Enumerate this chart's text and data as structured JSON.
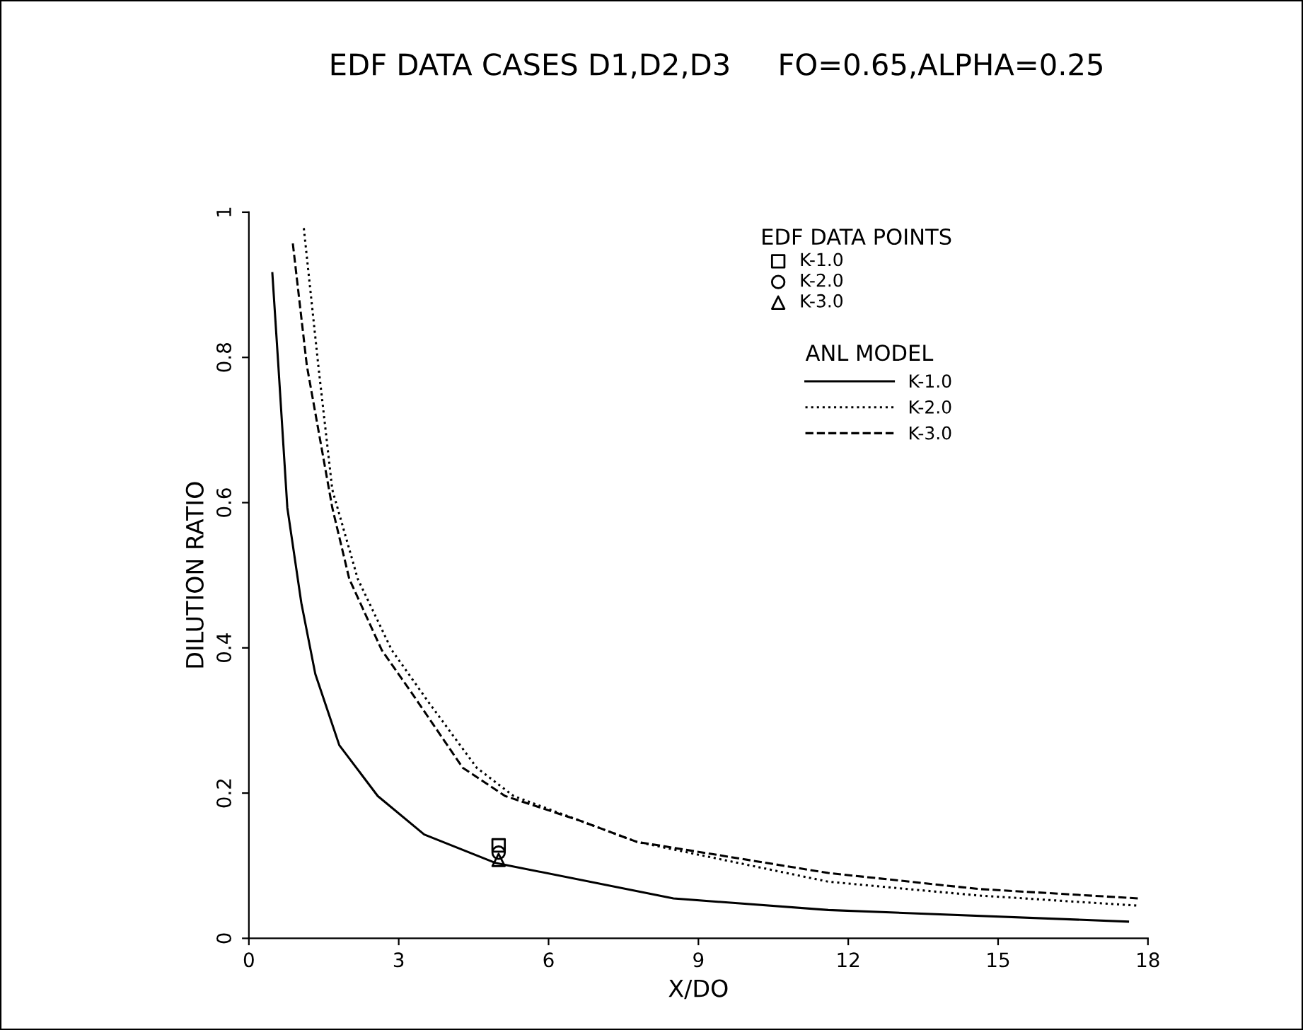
{
  "chart_data": {
    "type": "line",
    "title": "EDF DATA CASES D1,D2,D3     FO=0.65,ALPHA=0.25",
    "xlabel": "X/DO",
    "ylabel": "DILUTION RATIO",
    "legend_title": "EDF DATA POINTS",
    "annotations": [
      "ANL MODEL"
    ],
    "xlim": [
      0,
      18
    ],
    "xticks": [
      0,
      3,
      6,
      9,
      12,
      15,
      18
    ],
    "ylim": [
      0,
      1
    ],
    "yticks": [
      0,
      0.2,
      0.4,
      0.6,
      0.8,
      {
        "value": 1,
        "label": "1"
      }
    ],
    "grid": false,
    "legend": "top right",
    "series": [
      {
        "name": "K-1.0",
        "type": "scatter",
        "marker": "square",
        "color": "#000000",
        "x": [
          5
        ],
        "values": [
          0.128
        ]
      },
      {
        "name": "K-2.0",
        "type": "scatter",
        "marker": "circle",
        "color": "#000000",
        "x": [
          5
        ],
        "values": [
          0.118
        ]
      },
      {
        "name": "K-3.0",
        "type": "scatter",
        "marker": "triangle",
        "color": "#000000",
        "x": [
          5
        ],
        "values": [
          0.108
        ]
      },
      {
        "name": "K-1.0",
        "line_style": "solid",
        "color": "#000000",
        "x": [
          0.47,
          0.59,
          0.77,
          1.05,
          1.33,
          1.81,
          2.58,
          3.51,
          4.93,
          8.5,
          11.6,
          17.6
        ],
        "values": [
          0.916,
          0.789,
          0.593,
          0.462,
          0.364,
          0.266,
          0.196,
          0.143,
          0.104,
          0.055,
          0.039,
          0.023
        ]
      },
      {
        "name": "K-2.0",
        "line_style": "dotted",
        "color": "#000000",
        "x": [
          1.1,
          1.39,
          1.67,
          2.18,
          2.86,
          3.6,
          4.56,
          5.3,
          6.63,
          7.76,
          11.6,
          14.6,
          17.8
        ],
        "values": [
          0.978,
          0.789,
          0.618,
          0.495,
          0.397,
          0.325,
          0.235,
          0.196,
          0.162,
          0.133,
          0.078,
          0.059,
          0.045
        ]
      },
      {
        "name": "K-3.0",
        "line_style": "dashed",
        "color": "#000000",
        "x": [
          0.88,
          1.16,
          1.67,
          2.01,
          2.66,
          3.31,
          4.28,
          5.13,
          6.63,
          7.76,
          11.6,
          14.6,
          17.8
        ],
        "values": [
          0.957,
          0.789,
          0.593,
          0.495,
          0.397,
          0.333,
          0.235,
          0.196,
          0.162,
          0.133,
          0.09,
          0.068,
          0.055
        ]
      }
    ]
  }
}
